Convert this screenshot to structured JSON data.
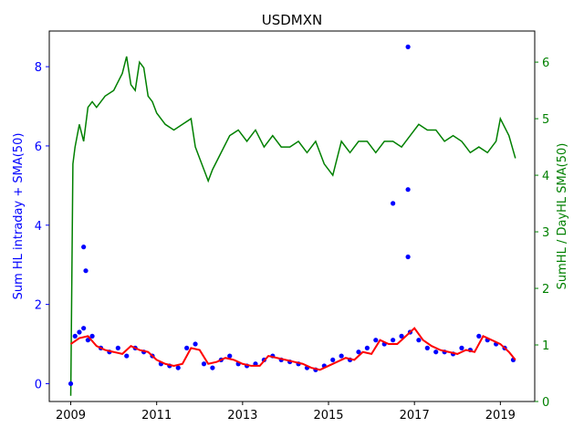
{
  "chart_data": {
    "type": "line",
    "title": "USDMXN",
    "xlabel": "",
    "ylabel_left": "Sum HL intraday + SMA(50)",
    "ylabel_right": "SumHL / DayHL SMA(50)",
    "xlim": [
      2008.5,
      2019.8
    ],
    "ylim_left": [
      -0.45,
      8.9
    ],
    "ylim_right": [
      0,
      6.55
    ],
    "x_ticks": [
      2009,
      2011,
      2013,
      2015,
      2017,
      2019
    ],
    "y_ticks_left": [
      0,
      2,
      4,
      6,
      8
    ],
    "y_ticks_right": [
      0,
      1,
      2,
      3,
      4,
      5,
      6
    ],
    "grid": false,
    "colors": {
      "scatter": "#0000ff",
      "sma": "#ff0000",
      "ratio": "#008000",
      "left_axis": "#0000ff",
      "right_axis": "#008000"
    },
    "series": [
      {
        "axis": "left",
        "kind": "scatter",
        "x": [
          2009.0,
          2009.1,
          2009.2,
          2009.3,
          2009.4,
          2009.5,
          2009.7,
          2009.9,
          2010.1,
          2010.3,
          2010.5,
          2010.7,
          2010.9,
          2011.1,
          2011.3,
          2011.5,
          2011.7,
          2011.9,
          2012.1,
          2012.3,
          2012.5,
          2012.7,
          2012.9,
          2013.1,
          2013.3,
          2013.5,
          2013.7,
          2013.9,
          2014.1,
          2014.3,
          2014.5,
          2014.7,
          2014.9,
          2015.1,
          2015.3,
          2015.5,
          2015.7,
          2015.9,
          2016.1,
          2016.3,
          2016.5,
          2016.7,
          2016.9,
          2017.1,
          2017.3,
          2017.5,
          2017.7,
          2017.9,
          2018.1,
          2018.3,
          2018.5,
          2018.7,
          2018.9,
          2019.1,
          2019.3,
          2016.85,
          2016.85,
          2016.85,
          2016.5,
          2009.3,
          2009.35
        ],
        "y": [
          0.0,
          1.2,
          1.3,
          1.4,
          1.1,
          1.2,
          0.9,
          0.8,
          0.9,
          0.7,
          0.9,
          0.8,
          0.7,
          0.5,
          0.45,
          0.4,
          0.9,
          1.0,
          0.5,
          0.4,
          0.6,
          0.7,
          0.5,
          0.45,
          0.5,
          0.6,
          0.7,
          0.6,
          0.55,
          0.5,
          0.4,
          0.35,
          0.45,
          0.6,
          0.7,
          0.6,
          0.8,
          0.9,
          1.1,
          1.0,
          1.1,
          1.2,
          1.3,
          1.1,
          0.9,
          0.8,
          0.8,
          0.75,
          0.9,
          0.85,
          1.2,
          1.1,
          1.0,
          0.9,
          0.6,
          8.5,
          4.9,
          3.2,
          4.55,
          3.45,
          2.85
        ]
      },
      {
        "axis": "left",
        "kind": "line",
        "name": "SMA(50)",
        "x": [
          2009.0,
          2009.2,
          2009.4,
          2009.6,
          2009.8,
          2010.0,
          2010.2,
          2010.4,
          2010.6,
          2010.8,
          2011.0,
          2011.2,
          2011.4,
          2011.6,
          2011.8,
          2012.0,
          2012.2,
          2012.4,
          2012.6,
          2012.8,
          2013.0,
          2013.2,
          2013.4,
          2013.6,
          2013.8,
          2014.0,
          2014.2,
          2014.4,
          2014.6,
          2014.8,
          2015.0,
          2015.2,
          2015.4,
          2015.6,
          2015.8,
          2016.0,
          2016.2,
          2016.4,
          2016.6,
          2016.8,
          2017.0,
          2017.2,
          2017.4,
          2017.6,
          2017.8,
          2018.0,
          2018.2,
          2018.4,
          2018.6,
          2018.8,
          2019.0,
          2019.2,
          2019.35
        ],
        "y": [
          1.0,
          1.15,
          1.2,
          0.95,
          0.85,
          0.8,
          0.75,
          0.95,
          0.85,
          0.8,
          0.6,
          0.5,
          0.45,
          0.5,
          0.9,
          0.85,
          0.5,
          0.55,
          0.65,
          0.6,
          0.5,
          0.45,
          0.45,
          0.7,
          0.65,
          0.6,
          0.55,
          0.5,
          0.4,
          0.35,
          0.45,
          0.55,
          0.65,
          0.6,
          0.8,
          0.75,
          1.1,
          1.0,
          1.0,
          1.2,
          1.4,
          1.1,
          0.95,
          0.85,
          0.8,
          0.75,
          0.85,
          0.8,
          1.2,
          1.1,
          1.0,
          0.8,
          0.6
        ]
      },
      {
        "axis": "right",
        "kind": "line",
        "name": "SumHL / DayHL SMA(50)",
        "x": [
          2009.0,
          2009.05,
          2009.1,
          2009.2,
          2009.3,
          2009.4,
          2009.5,
          2009.6,
          2009.8,
          2010.0,
          2010.2,
          2010.3,
          2010.4,
          2010.5,
          2010.6,
          2010.7,
          2010.8,
          2010.9,
          2011.0,
          2011.2,
          2011.4,
          2011.6,
          2011.8,
          2011.9,
          2012.0,
          2012.1,
          2012.2,
          2012.3,
          2012.5,
          2012.7,
          2012.9,
          2013.1,
          2013.3,
          2013.5,
          2013.7,
          2013.9,
          2014.1,
          2014.3,
          2014.5,
          2014.7,
          2014.9,
          2015.1,
          2015.3,
          2015.5,
          2015.7,
          2015.9,
          2016.1,
          2016.3,
          2016.5,
          2016.7,
          2016.9,
          2017.1,
          2017.3,
          2017.5,
          2017.7,
          2017.9,
          2018.1,
          2018.3,
          2018.5,
          2018.7,
          2018.9,
          2019.0,
          2019.2,
          2019.35
        ],
        "y": [
          0.1,
          4.2,
          4.5,
          4.9,
          4.6,
          5.2,
          5.3,
          5.2,
          5.4,
          5.5,
          5.8,
          6.1,
          5.6,
          5.5,
          6.0,
          5.9,
          5.4,
          5.3,
          5.1,
          4.9,
          4.8,
          4.9,
          5.0,
          4.5,
          4.3,
          4.1,
          3.9,
          4.1,
          4.4,
          4.7,
          4.8,
          4.6,
          4.8,
          4.5,
          4.7,
          4.5,
          4.5,
          4.6,
          4.4,
          4.6,
          4.2,
          4.0,
          4.6,
          4.4,
          4.6,
          4.6,
          4.4,
          4.6,
          4.6,
          4.5,
          4.7,
          4.9,
          4.8,
          4.8,
          4.6,
          4.7,
          4.6,
          4.4,
          4.5,
          4.4,
          4.6,
          5.0,
          4.7,
          4.3
        ]
      }
    ]
  }
}
